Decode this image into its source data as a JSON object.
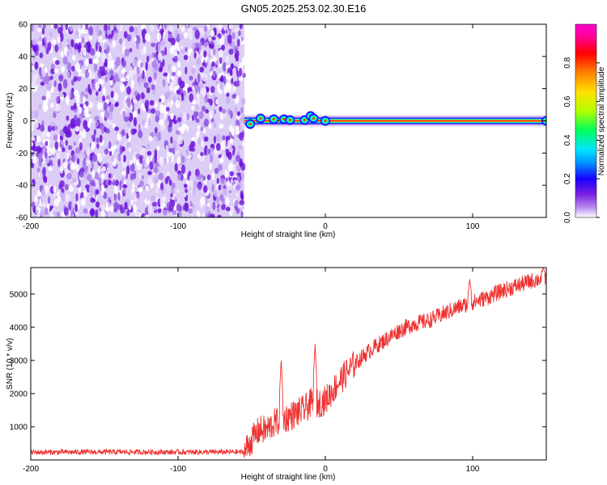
{
  "title": "GN05.2025.253.02.30.E16",
  "chart_data": [
    {
      "type": "heatmap",
      "title": "GN05.2025.253.02.30.E16",
      "xlabel": "Height of straight line (km)",
      "ylabel": "Frequency (Hz)",
      "xlim": [
        -200,
        150
      ],
      "ylim": [
        -60,
        60
      ],
      "x_ticks": [
        -200,
        -100,
        0,
        100
      ],
      "x_tick_labels": [
        "-200",
        "-100",
        "0",
        "100"
      ],
      "y_ticks": [
        -60,
        -40,
        -20,
        0,
        20,
        40,
        60
      ],
      "y_tick_labels": [
        "-60",
        "-40",
        "-20",
        "0",
        "20",
        "40",
        "60"
      ],
      "noise_region_x": [
        -200,
        -55
      ],
      "signal_region_x": [
        -55,
        150
      ],
      "signal_center_freq": 0,
      "signal_band_peaks": [
        {
          "x": -51,
          "y": -2
        },
        {
          "x": -44,
          "y": 1.5
        },
        {
          "x": -35,
          "y": 1
        },
        {
          "x": -28,
          "y": 1
        },
        {
          "x": -24,
          "y": 0.5
        },
        {
          "x": -14,
          "y": 0.5
        },
        {
          "x": -10,
          "y": 3
        },
        {
          "x": -8,
          "y": 1.5
        },
        {
          "x": 0,
          "y": 0
        },
        {
          "x": 150,
          "y": 0
        }
      ],
      "colorbar": {
        "label": "Normalized spectral amplitude",
        "range": [
          0,
          1
        ],
        "ticks": [
          0.0,
          0.2,
          0.4,
          0.6,
          0.8
        ],
        "tick_labels": [
          "0.0",
          "0.2",
          "0.4",
          "0.6",
          "0.8"
        ],
        "colors": [
          "#ffffff",
          "#b98ff0",
          "#7a1fe0",
          "#1a00ff",
          "#0090ff",
          "#00e5ff",
          "#00ff60",
          "#b0ff00",
          "#ffe000",
          "#ff8000",
          "#ff0000",
          "#ff0090",
          "#ff00d0"
        ]
      }
    },
    {
      "type": "line",
      "xlabel": "Height of straight line (km)",
      "ylabel": "SNR (10 * v/v)",
      "xlim": [
        -200,
        150
      ],
      "ylim": [
        0,
        5800
      ],
      "x_ticks": [
        -200,
        -100,
        0,
        100
      ],
      "x_tick_labels": [
        "-200",
        "-100",
        "0",
        "100"
      ],
      "y_ticks": [
        1000,
        2000,
        3000,
        4000,
        5000
      ],
      "y_tick_labels": [
        "1000",
        "2000",
        "3000",
        "4000",
        "5000"
      ],
      "series": [
        {
          "name": "SNR",
          "color": "#ee3030",
          "x": [
            -200,
            -150,
            -100,
            -55,
            -50,
            -45,
            -40,
            -35,
            -30,
            -25,
            -20,
            -15,
            -10,
            -5,
            0,
            10,
            20,
            30,
            40,
            50,
            60,
            70,
            80,
            90,
            100,
            110,
            120,
            130,
            140,
            150
          ],
          "values": [
            230,
            240,
            235,
            240,
            600,
            900,
            900,
            1100,
            1200,
            1300,
            1400,
            1500,
            1700,
            1700,
            1800,
            2400,
            2900,
            3300,
            3600,
            3900,
            4100,
            4200,
            4400,
            4600,
            4750,
            4900,
            5100,
            5250,
            5400,
            5500
          ]
        }
      ],
      "spikes": [
        {
          "x": -30,
          "y": 3000
        },
        {
          "x": -7,
          "y": 3500
        },
        {
          "x": 98,
          "y": 5450
        },
        {
          "x": 148,
          "y": 5800
        }
      ]
    }
  ]
}
